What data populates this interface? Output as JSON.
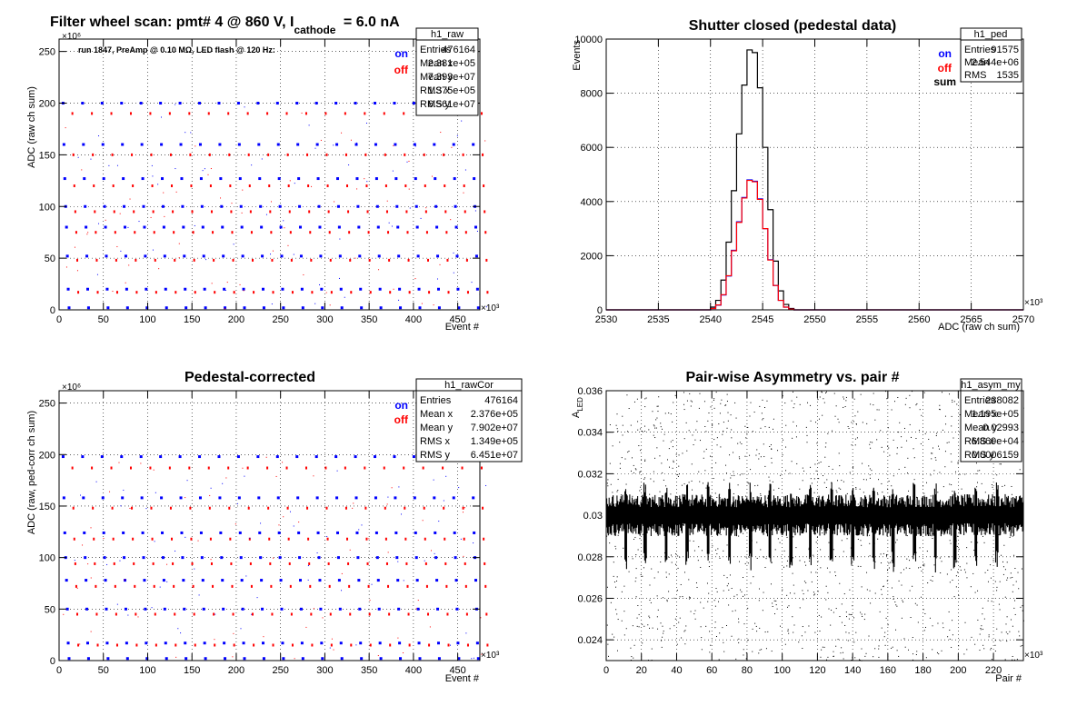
{
  "panels": {
    "raw": {
      "title_parts": {
        "main": "Filter wheel scan: pmt#   4 @   860 V, I",
        "sub": "cathode",
        "tail": " = 6.0 nA"
      },
      "annotation": "run 1847, PreAmp @ 0.10 MΩ, LED flash @  120 Hz:",
      "stats": {
        "name": "h1_raw",
        "rows": [
          [
            "Entries",
            "476164"
          ],
          [
            "Mean x",
            "2.381e+05"
          ],
          [
            "Mean y",
            "7.393e+07"
          ],
          [
            "RMS x",
            "1.375e+05"
          ],
          [
            "RMS y",
            "6.561e+07"
          ]
        ]
      },
      "legend": [
        {
          "label": "on",
          "color": "#0000ff"
        },
        {
          "label": "off",
          "color": "#ff0000"
        }
      ],
      "xlabel": "Event #",
      "ylabel": "ADC (raw ch sum)",
      "x_exp": "×10³",
      "y_exp": "×10⁶"
    },
    "ped": {
      "title": "Shutter closed (pedestal data)",
      "stats": {
        "name": "h1_ped",
        "rows": [
          [
            "Entries",
            "91575"
          ],
          [
            "Mean",
            "2.544e+06"
          ],
          [
            "RMS",
            "1535"
          ]
        ]
      },
      "legend": [
        {
          "label": "on",
          "color": "#0000ff"
        },
        {
          "label": "off",
          "color": "#ff0000"
        },
        {
          "label": "sum",
          "color": "#000000"
        }
      ],
      "xlabel": "ADC (raw ch sum)",
      "ylabel": "Events",
      "x_exp": "×10³"
    },
    "cor": {
      "title": "Pedestal-corrected",
      "stats": {
        "name": "h1_rawCor",
        "rows": [
          [
            "Entries",
            "476164"
          ],
          [
            "Mean x",
            "2.376e+05"
          ],
          [
            "Mean y",
            "7.902e+07"
          ],
          [
            "RMS x",
            "1.349e+05"
          ],
          [
            "RMS y",
            "6.451e+07"
          ]
        ]
      },
      "legend": [
        {
          "label": "on",
          "color": "#0000ff"
        },
        {
          "label": "off",
          "color": "#ff0000"
        }
      ],
      "xlabel": "Event #",
      "ylabel": "ADC (raw, ped-corr ch sum)",
      "x_exp": "×10³",
      "y_exp": "×10⁶"
    },
    "asym": {
      "title": "Pair-wise Asymmetry vs. pair #",
      "stats": {
        "name": "h1_asym_my",
        "rows": [
          [
            "Entries",
            "238082"
          ],
          [
            "Mean x",
            "1.195e+05"
          ],
          [
            "Mean y",
            "0.02993"
          ],
          [
            "RMS x",
            "6.869e+04"
          ],
          [
            "RMS y",
            "0.0006159"
          ]
        ]
      },
      "xlabel": "Pair #",
      "ylabel_main": "A",
      "ylabel_sub": "LED",
      "x_exp": "×10³"
    }
  },
  "chart_data": [
    {
      "type": "scatter",
      "name": "h1_raw",
      "x_ticks": [
        "0",
        "50",
        "100",
        "150",
        "200",
        "250",
        "300",
        "350",
        "400",
        "450"
      ],
      "y_ticks": [
        "0",
        "50",
        "100",
        "150",
        "200",
        "250"
      ],
      "xlim": [
        0,
        475
      ],
      "ylim": [
        0,
        262
      ],
      "levels_on": [
        200,
        160,
        127,
        100,
        80,
        52,
        20,
        2
      ],
      "levels_off": [
        190,
        150,
        120,
        95,
        75,
        48,
        17
      ],
      "period": 22,
      "series": [
        {
          "name": "on",
          "color": "#0000ff"
        },
        {
          "name": "off",
          "color": "#ff0000"
        }
      ]
    },
    {
      "type": "line",
      "name": "h1_ped",
      "x_ticks": [
        "2530",
        "2535",
        "2540",
        "2545",
        "2550",
        "2555",
        "2560",
        "2565",
        "2570"
      ],
      "y_ticks": [
        "0",
        "2000",
        "4000",
        "6000",
        "8000",
        "10000"
      ],
      "xlim": [
        2530,
        2570
      ],
      "ylim": [
        0,
        10000
      ],
      "bins_x": [
        2539.5,
        2540,
        2540.5,
        2541,
        2541.5,
        2542,
        2542.5,
        2543,
        2543.5,
        2544,
        2544.5,
        2545,
        2545.5,
        2546,
        2546.5,
        2547,
        2547.5,
        2548
      ],
      "series": [
        {
          "name": "sum",
          "color": "#000000",
          "values": [
            0,
            100,
            350,
            1100,
            2500,
            4400,
            6500,
            8300,
            9600,
            9500,
            8200,
            6000,
            3700,
            1800,
            700,
            200,
            50,
            0
          ]
        },
        {
          "name": "on",
          "color": "#0000ff",
          "values": [
            0,
            50,
            170,
            550,
            1250,
            2200,
            3250,
            4150,
            4800,
            4750,
            4100,
            3000,
            1850,
            900,
            350,
            100,
            25,
            0
          ]
        },
        {
          "name": "off",
          "color": "#ff0000",
          "values": [
            0,
            50,
            180,
            560,
            1260,
            2180,
            3230,
            4130,
            4780,
            4730,
            4080,
            3000,
            1840,
            900,
            350,
            100,
            25,
            0
          ]
        }
      ]
    },
    {
      "type": "scatter",
      "name": "h1_rawCor",
      "x_ticks": [
        "0",
        "50",
        "100",
        "150",
        "200",
        "250",
        "300",
        "350",
        "400",
        "450"
      ],
      "y_ticks": [
        "0",
        "50",
        "100",
        "150",
        "200",
        "250"
      ],
      "xlim": [
        0,
        475
      ],
      "ylim": [
        0,
        262
      ],
      "levels_on": [
        198,
        158,
        124,
        100,
        78,
        50,
        17,
        2
      ],
      "levels_off": [
        187,
        148,
        118,
        94,
        72,
        45,
        15
      ],
      "period": 22,
      "series": [
        {
          "name": "on",
          "color": "#0000ff"
        },
        {
          "name": "off",
          "color": "#ff0000"
        }
      ]
    },
    {
      "type": "scatter",
      "name": "h1_asym_my",
      "x_ticks": [
        "0",
        "20",
        "40",
        "60",
        "80",
        "100",
        "120",
        "140",
        "160",
        "180",
        "200",
        "220"
      ],
      "y_ticks": [
        "0.024",
        "0.026",
        "0.028",
        "0.03",
        "0.032",
        "0.034",
        "0.036"
      ],
      "xlim": [
        0,
        237
      ],
      "ylim": [
        0.023,
        0.036
      ],
      "band_center": 0.03,
      "band_halfwidth": 0.0007,
      "dips_x": [
        11,
        22,
        34,
        46,
        58,
        70,
        82,
        93,
        105,
        116,
        128,
        140,
        152,
        163,
        175,
        187,
        198,
        210,
        222
      ],
      "series": [
        {
          "name": "h1_asym_my",
          "color": "#000000"
        }
      ]
    }
  ]
}
